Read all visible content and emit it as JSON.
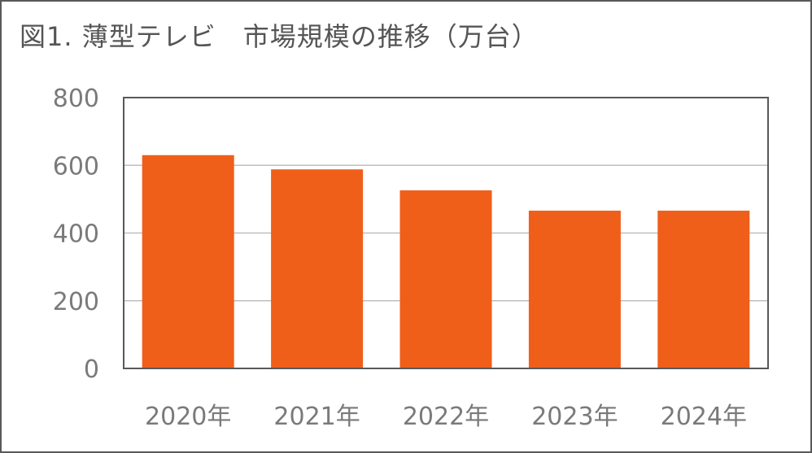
{
  "chart_data": {
    "type": "bar",
    "title": "図1. 薄型テレビ　市場規模の推移（万台）",
    "categories": [
      "2020年",
      "2021年",
      "2022年",
      "2023年",
      "2024年"
    ],
    "values": [
      630,
      588,
      526,
      466,
      466
    ],
    "ylim": [
      0,
      800
    ],
    "yticks": [
      "0",
      "200",
      "400",
      "600",
      "800"
    ],
    "xlabel": "",
    "ylabel": "",
    "grid": true,
    "legend": "none",
    "bar_color": "#ef5f1a",
    "grid_color": "#bfbfbf",
    "axis_color": "#595959"
  }
}
